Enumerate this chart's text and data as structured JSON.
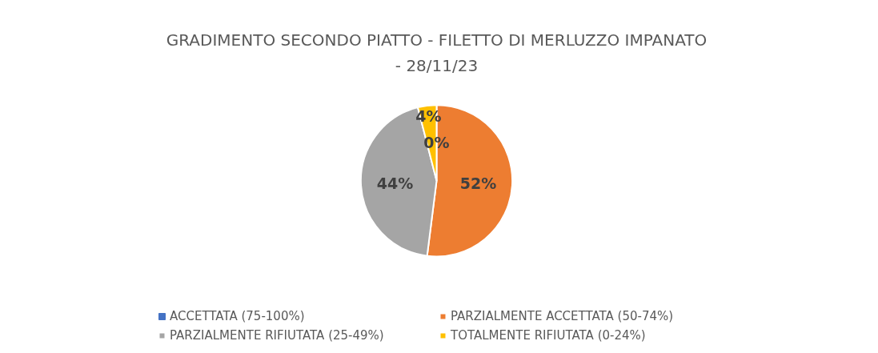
{
  "chart_data": {
    "type": "pie",
    "title": "GRADIMENTO SECONDO PIATTO - FILETTO DI MERLUZZO IMPANATO - 28/11/23",
    "categories": [
      "ACCETTATA (75-100%)",
      "PARZIALMENTE ACCETTATA (50-74%)",
      "PARZIALMENTE RIFIUTATA (25-49%)",
      "TOTALMENTE RIFIUTATA (0-24%)"
    ],
    "values": [
      0,
      52,
      44,
      4
    ],
    "colors": [
      "#4472c4",
      "#ed7d31",
      "#a5a5a5",
      "#ffc000"
    ],
    "value_labels": [
      "0%",
      "52%",
      "44%",
      "4%"
    ],
    "legend": "bottom"
  }
}
